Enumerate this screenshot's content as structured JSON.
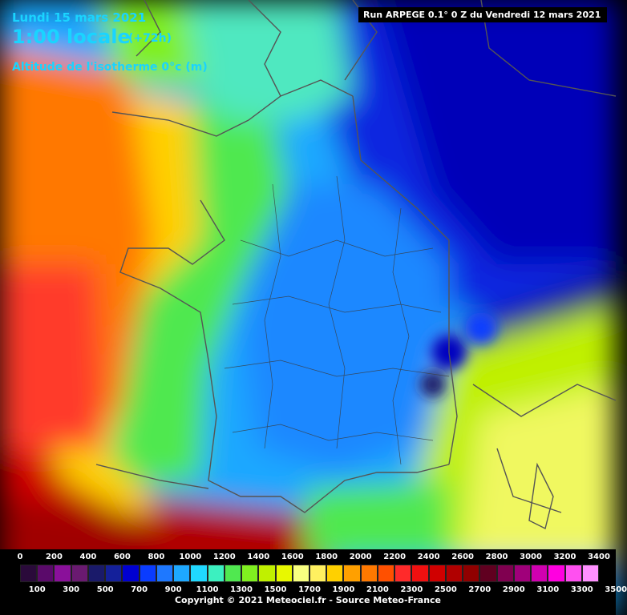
{
  "header": {
    "date": "Lundi 15 mars 2021",
    "time": "1:00 locale",
    "lead": "(+72h)",
    "parameter": "Altitude de l'isotherme 0°c (m)",
    "run": "Run ARPEGE 0.1° 0 Z du Vendredi 12 mars 2021"
  },
  "legend": {
    "top_labels": [
      "0",
      "200",
      "400",
      "600",
      "800",
      "1000",
      "1200",
      "1400",
      "1600",
      "1800",
      "2000",
      "2200",
      "2400",
      "2600",
      "2800",
      "3000",
      "3200",
      "3400"
    ],
    "bottom_labels": [
      "100",
      "300",
      "500",
      "700",
      "900",
      "1100",
      "1300",
      "1500",
      "1700",
      "1900",
      "2100",
      "2300",
      "2500",
      "2700",
      "2900",
      "3100",
      "3300",
      "3500"
    ],
    "colors": [
      "#2a0a3a",
      "#5a0a6a",
      "#8a109a",
      "#6a1a70",
      "#1a1a6a",
      "#14209a",
      "#0000d0",
      "#0a3cff",
      "#1e78ff",
      "#1ea8ff",
      "#20d8ff",
      "#3cf0c0",
      "#50e850",
      "#80f020",
      "#c0f000",
      "#e8f800",
      "#f8ff80",
      "#fff060",
      "#ffd000",
      "#ffa000",
      "#ff7800",
      "#ff5000",
      "#ff2a2a",
      "#f01010",
      "#d00000",
      "#b00000",
      "#900000",
      "#600020",
      "#800050",
      "#a0007a",
      "#d000b0",
      "#ff00e0",
      "#ff50f0",
      "#ff90ff"
    ]
  },
  "copyright": "Copyright © 2021 Meteociel.fr - Source Meteo-France"
}
